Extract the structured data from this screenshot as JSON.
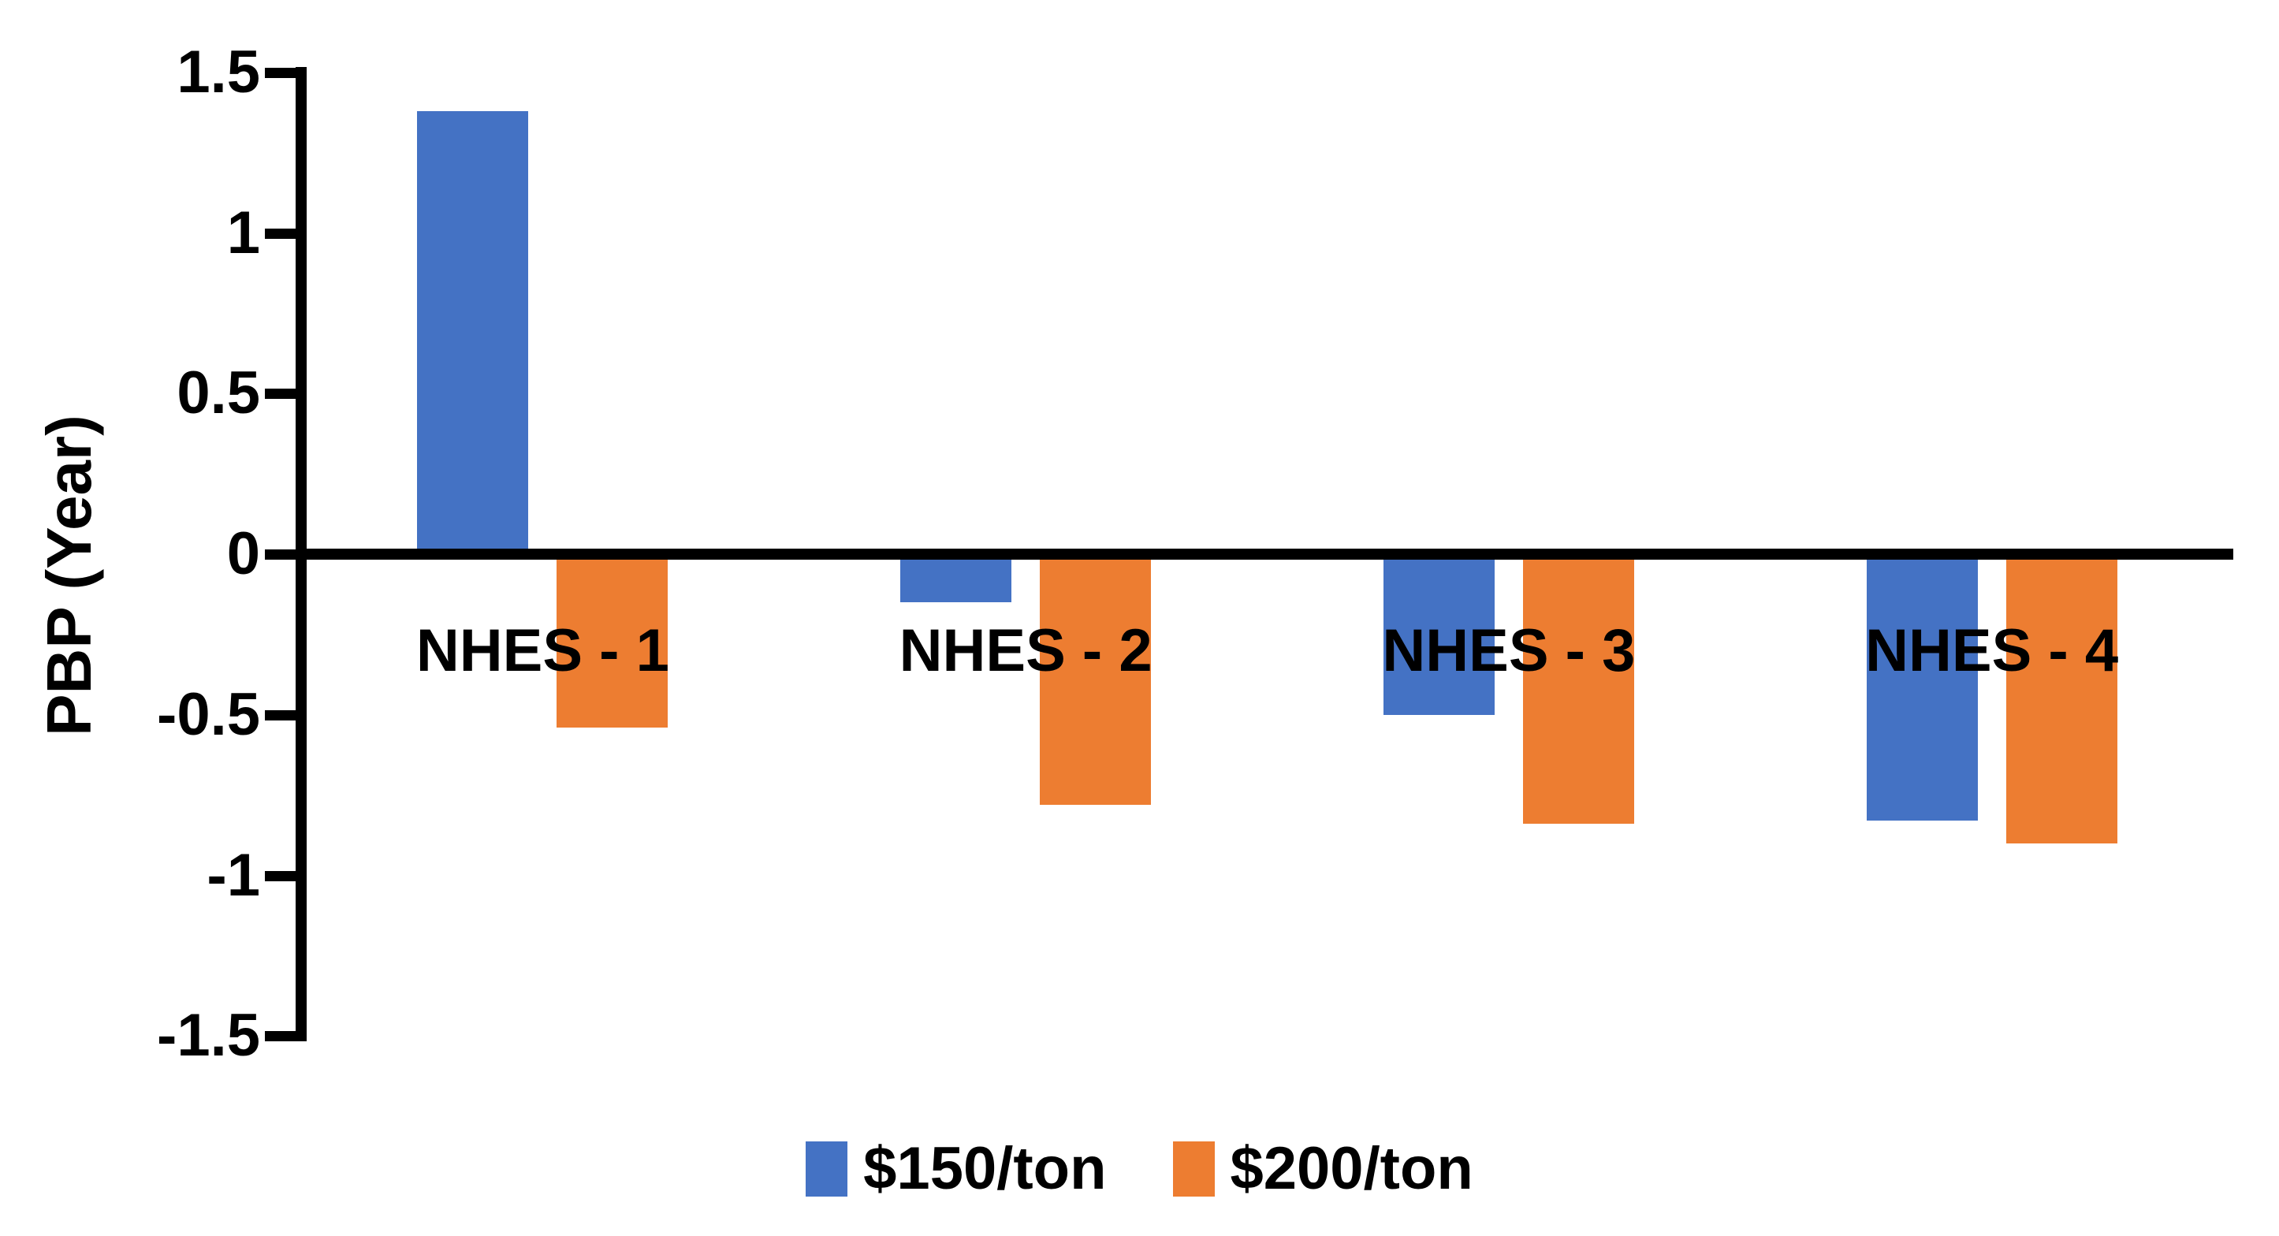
{
  "chart_data": {
    "type": "bar",
    "title": "",
    "ylabel": "PBP (Year)",
    "xlabel": "",
    "categories": [
      "NHES - 1",
      "NHES - 2",
      "NHES - 3",
      "NHES - 4"
    ],
    "series": [
      {
        "name": "$150/ton",
        "color": "#4472C4",
        "values": [
          1.38,
          -0.15,
          -0.5,
          -0.83
        ]
      },
      {
        "name": "$200/ton",
        "color": "#ED7D31",
        "values": [
          -0.54,
          -0.78,
          -0.84,
          -0.9
        ]
      }
    ],
    "ylim": [
      -1.5,
      1.5
    ],
    "y_ticks": [
      1.5,
      1,
      0.5,
      0,
      -0.5,
      -1,
      -1.5
    ],
    "y_tick_labels": [
      "1.5",
      "1",
      "0.5",
      "0",
      "-0.5",
      "-1",
      "-1.5"
    ],
    "grid": "off",
    "legend_position": "bottom",
    "axis_color": "#000000",
    "text_color": "#000000",
    "background_color": "#FFFFFF"
  }
}
